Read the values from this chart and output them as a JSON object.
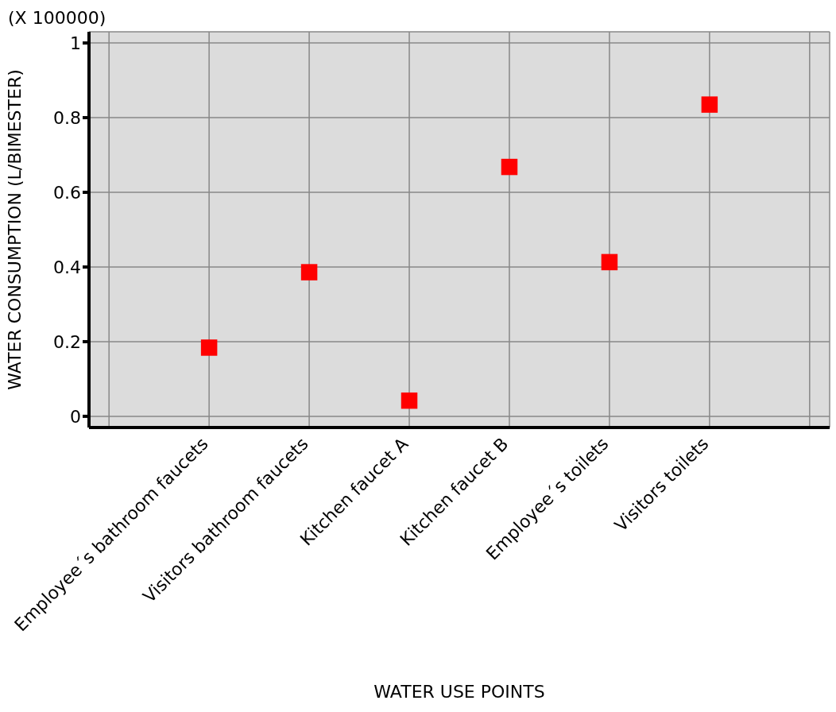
{
  "chart_data": {
    "type": "scatter",
    "xlabel": "WATER USE POINTS",
    "ylabel": "WATER CONSUMPTION (L/BIMESTER)",
    "annotations": [
      "(X 100000)"
    ],
    "categories": [
      null,
      "Employee´s bathroom faucets",
      "Visitors bathroom faucets",
      "Kitchen faucet A",
      "Kitchen faucet B",
      "Employee´s toilets",
      "Visitors toilets",
      null
    ],
    "values": [
      null,
      0.184,
      0.386,
      0.042,
      0.668,
      0.413,
      0.835,
      null
    ],
    "color": "#ff0000",
    "marker": "square",
    "ylim": [
      -0.03,
      1.03
    ],
    "yticks": [
      0,
      0.2,
      0.4,
      0.6,
      0.8,
      1
    ],
    "grid": true
  }
}
